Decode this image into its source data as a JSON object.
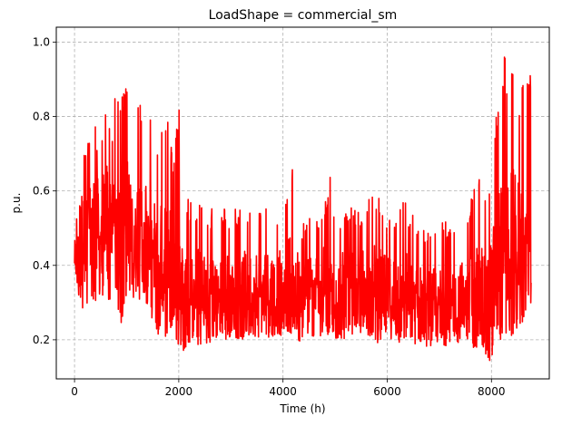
{
  "chart_data": {
    "type": "line",
    "title": "LoadShape = commercial_sm",
    "xlabel": "Time (h)",
    "ylabel": "p.u.",
    "xlim": [
      -350,
      9110
    ],
    "ylim": [
      0.095,
      1.04
    ],
    "xticks": [
      0,
      2000,
      4000,
      6000,
      8000
    ],
    "xtick_labels": [
      "0",
      "2000",
      "4000",
      "6000",
      "8000"
    ],
    "yticks": [
      0.2,
      0.4,
      0.6,
      0.8,
      1.0
    ],
    "ytick_labels": [
      "0.2",
      "0.4",
      "0.6",
      "0.8",
      "1.0"
    ],
    "grid": true,
    "grid_style": "dashed",
    "series": [
      {
        "color": "#ff0000",
        "envelope": {
          "x": [
            0,
            100,
            200,
            300,
            400,
            500,
            600,
            700,
            800,
            900,
            1000,
            1100,
            1200,
            1300,
            1400,
            1500,
            1600,
            1700,
            1800,
            1900,
            2000,
            2100,
            2200,
            2300,
            2400,
            2500,
            2600,
            2700,
            2800,
            2900,
            3000,
            3200,
            3400,
            3600,
            3800,
            4000,
            4200,
            4300,
            4400,
            4600,
            4800,
            4900,
            5000,
            5200,
            5400,
            5600,
            5800,
            6000,
            6200,
            6300,
            6400,
            6600,
            6800,
            7000,
            7200,
            7400,
            7600,
            7800,
            7900,
            8000,
            8100,
            8200,
            8250,
            8300,
            8400,
            8500,
            8600,
            8700,
            8760
          ],
          "upper": [
            0.82,
            0.72,
            0.73,
            0.75,
            0.78,
            0.72,
            0.85,
            0.76,
            0.89,
            0.86,
            0.88,
            0.86,
            0.85,
            0.83,
            0.82,
            0.8,
            0.72,
            0.78,
            0.8,
            0.68,
            0.83,
            0.6,
            0.58,
            0.55,
            0.6,
            0.57,
            0.55,
            0.58,
            0.54,
            0.56,
            0.55,
            0.56,
            0.55,
            0.56,
            0.54,
            0.57,
            0.7,
            0.55,
            0.52,
            0.54,
            0.57,
            0.65,
            0.54,
            0.56,
            0.55,
            0.57,
            0.6,
            0.54,
            0.56,
            0.62,
            0.56,
            0.52,
            0.5,
            0.52,
            0.52,
            0.54,
            0.58,
            0.65,
            0.6,
            0.68,
            0.82,
            0.86,
            1.0,
            0.88,
            0.95,
            0.84,
            0.9,
            0.92,
            0.92
          ],
          "lower": [
            0.38,
            0.29,
            0.28,
            0.27,
            0.3,
            0.32,
            0.3,
            0.31,
            0.3,
            0.24,
            0.3,
            0.32,
            0.3,
            0.31,
            0.29,
            0.25,
            0.2,
            0.22,
            0.19,
            0.24,
            0.17,
            0.17,
            0.19,
            0.2,
            0.18,
            0.17,
            0.19,
            0.2,
            0.21,
            0.2,
            0.21,
            0.2,
            0.21,
            0.2,
            0.21,
            0.21,
            0.22,
            0.19,
            0.21,
            0.2,
            0.21,
            0.2,
            0.2,
            0.2,
            0.21,
            0.21,
            0.19,
            0.21,
            0.19,
            0.19,
            0.18,
            0.19,
            0.18,
            0.19,
            0.18,
            0.19,
            0.18,
            0.17,
            0.15,
            0.14,
            0.17,
            0.2,
            0.22,
            0.21,
            0.21,
            0.22,
            0.24,
            0.27,
            0.3
          ],
          "typical": [
            0.45,
            0.48,
            0.5,
            0.52,
            0.55,
            0.5,
            0.56,
            0.55,
            0.58,
            0.52,
            0.55,
            0.52,
            0.53,
            0.52,
            0.5,
            0.48,
            0.42,
            0.44,
            0.44,
            0.4,
            0.42,
            0.36,
            0.34,
            0.34,
            0.35,
            0.33,
            0.34,
            0.35,
            0.34,
            0.35,
            0.35,
            0.35,
            0.35,
            0.36,
            0.35,
            0.36,
            0.38,
            0.34,
            0.34,
            0.35,
            0.36,
            0.37,
            0.34,
            0.35,
            0.35,
            0.36,
            0.36,
            0.34,
            0.34,
            0.36,
            0.33,
            0.32,
            0.31,
            0.32,
            0.31,
            0.32,
            0.33,
            0.34,
            0.33,
            0.36,
            0.45,
            0.48,
            0.52,
            0.48,
            0.5,
            0.47,
            0.48,
            0.5,
            0.48
          ]
        }
      }
    ]
  }
}
